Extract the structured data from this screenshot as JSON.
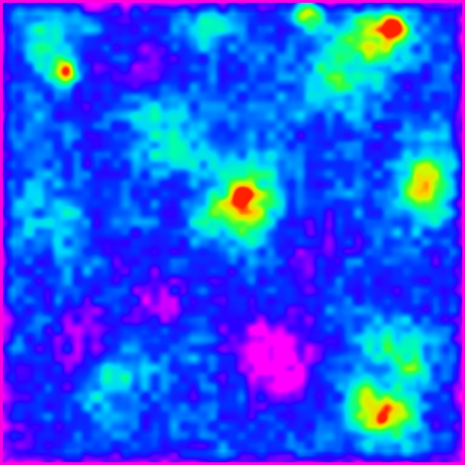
{
  "chart_data": {
    "type": "heatmap",
    "title": "",
    "xlabel": "",
    "ylabel": "",
    "grid": false,
    "legend": "none",
    "colormap": [
      "#ff00ff",
      "#8a00ff",
      "#2a00ff",
      "#0033ff",
      "#0080ff",
      "#00d8ff",
      "#00ffb0",
      "#30ff40",
      "#c8ff00",
      "#ffd000",
      "#ff2000"
    ],
    "scale_range": [
      0,
      1
    ],
    "resolution": [
      32,
      32
    ],
    "base_level": 0.3,
    "hotspots": [
      {
        "x": 0.14,
        "y": 0.155,
        "amplitude": 0.65,
        "spread": 0.02
      },
      {
        "x": 0.11,
        "y": 0.09,
        "amplitude": 0.25,
        "spread": 0.05
      },
      {
        "x": 0.44,
        "y": 0.065,
        "amplitude": 0.3,
        "spread": 0.04
      },
      {
        "x": 0.66,
        "y": 0.03,
        "amplitude": 0.4,
        "spread": 0.025
      },
      {
        "x": 0.81,
        "y": 0.08,
        "amplitude": 0.45,
        "spread": 0.045
      },
      {
        "x": 0.85,
        "y": 0.06,
        "amplitude": 0.55,
        "spread": 0.02
      },
      {
        "x": 0.73,
        "y": 0.15,
        "amplitude": 0.3,
        "spread": 0.06
      },
      {
        "x": 0.52,
        "y": 0.43,
        "amplitude": 0.55,
        "spread": 0.06
      },
      {
        "x": 0.52,
        "y": 0.42,
        "amplitude": 0.35,
        "spread": 0.015
      },
      {
        "x": 0.91,
        "y": 0.42,
        "amplitude": 0.4,
        "spread": 0.045
      },
      {
        "x": 0.92,
        "y": 0.36,
        "amplitude": 0.25,
        "spread": 0.04
      },
      {
        "x": 0.35,
        "y": 0.29,
        "amplitude": 0.2,
        "spread": 0.06
      },
      {
        "x": 0.1,
        "y": 0.44,
        "amplitude": 0.2,
        "spread": 0.06
      },
      {
        "x": 0.25,
        "y": 0.82,
        "amplitude": 0.25,
        "spread": 0.05
      },
      {
        "x": 0.82,
        "y": 0.9,
        "amplitude": 0.55,
        "spread": 0.04
      },
      {
        "x": 0.82,
        "y": 0.9,
        "amplitude": 0.3,
        "spread": 0.012
      },
      {
        "x": 0.78,
        "y": 0.85,
        "amplitude": 0.4,
        "spread": 0.025
      },
      {
        "x": 0.88,
        "y": 0.8,
        "amplitude": 0.35,
        "spread": 0.025
      },
      {
        "x": 0.87,
        "y": 0.87,
        "amplitude": 0.3,
        "spread": 0.025
      },
      {
        "x": 0.85,
        "y": 0.74,
        "amplitude": 0.25,
        "spread": 0.05
      }
    ],
    "coldspots": [
      {
        "x": 0.58,
        "y": 0.73,
        "amplitude": 0.3,
        "spread": 0.05
      },
      {
        "x": 0.36,
        "y": 0.64,
        "amplitude": 0.25,
        "spread": 0.04
      },
      {
        "x": 0.18,
        "y": 0.73,
        "amplitude": 0.22,
        "spread": 0.05
      },
      {
        "x": 0.6,
        "y": 0.82,
        "amplitude": 0.25,
        "spread": 0.05
      },
      {
        "x": 0.66,
        "y": 0.55,
        "amplitude": 0.15,
        "spread": 0.06
      },
      {
        "x": 0.05,
        "y": 0.95,
        "amplitude": 0.2,
        "spread": 0.04
      },
      {
        "x": 0.3,
        "y": 0.12,
        "amplitude": 0.12,
        "spread": 0.05
      }
    ],
    "edge_falloff": 0.25
  }
}
